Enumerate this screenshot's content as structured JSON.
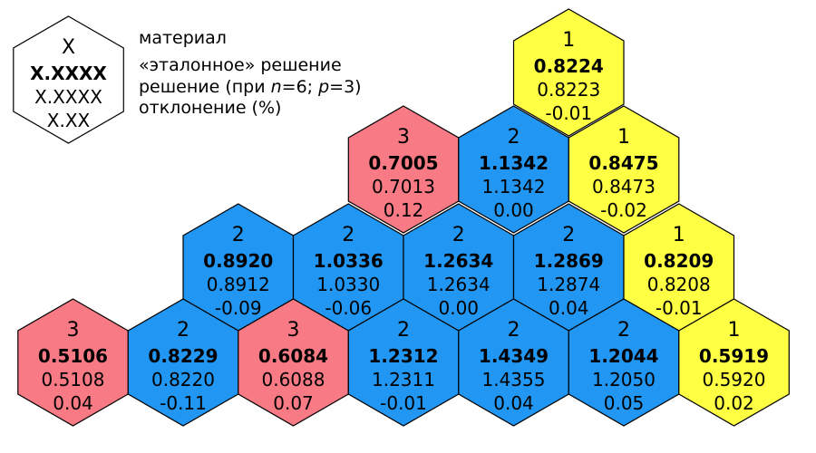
{
  "colors": {
    "red": "#F87A85",
    "blue": "#2196F3",
    "yellow": "#FFFF44",
    "legend": "#FFFFFF",
    "stroke": "#000000"
  },
  "legend": {
    "hex_lines": [
      "X",
      "X.XXXX",
      "X.XXXX",
      "X.XX"
    ],
    "labels": {
      "material": "материал",
      "reference": "«эталонное» решение",
      "solution_prefix": "решение (при ",
      "n_var": "n",
      "n_value": "=6; ",
      "p_var": "p",
      "p_value": "=3)",
      "deviation": "отклонение (%)"
    }
  },
  "cells": [
    {
      "id": "r0-c0",
      "color": "yellow",
      "material": "1",
      "reference": "0.8224",
      "solution": "0.8223",
      "deviation": "-0.01"
    },
    {
      "id": "r1-c0",
      "color": "red",
      "material": "3",
      "reference": "0.7005",
      "solution": "0.7013",
      "deviation": "0.12"
    },
    {
      "id": "r1-c1",
      "color": "blue",
      "material": "2",
      "reference": "1.1342",
      "solution": "1.1342",
      "deviation": "0.00"
    },
    {
      "id": "r1-c2",
      "color": "yellow",
      "material": "1",
      "reference": "0.8475",
      "solution": "0.8473",
      "deviation": "-0.02"
    },
    {
      "id": "r2-c0",
      "color": "blue",
      "material": "2",
      "reference": "0.8920",
      "solution": "0.8912",
      "deviation": "-0.09"
    },
    {
      "id": "r2-c1",
      "color": "blue",
      "material": "2",
      "reference": "1.0336",
      "solution": "1.0330",
      "deviation": "-0.06"
    },
    {
      "id": "r2-c2",
      "color": "blue",
      "material": "2",
      "reference": "1.2634",
      "solution": "1.2634",
      "deviation": "0.00"
    },
    {
      "id": "r2-c3",
      "color": "blue",
      "material": "2",
      "reference": "1.2869",
      "solution": "1.2874",
      "deviation": "0.04"
    },
    {
      "id": "r2-c4",
      "color": "yellow",
      "material": "1",
      "reference": "0.8209",
      "solution": "0.8208",
      "deviation": "-0.01"
    },
    {
      "id": "r3-c0",
      "color": "red",
      "material": "3",
      "reference": "0.5106",
      "solution": "0.5108",
      "deviation": "0.04"
    },
    {
      "id": "r3-c1",
      "color": "blue",
      "material": "2",
      "reference": "0.8229",
      "solution": "0.8220",
      "deviation": "-0.11"
    },
    {
      "id": "r3-c2",
      "color": "red",
      "material": "3",
      "reference": "0.6084",
      "solution": "0.6088",
      "deviation": "0.07"
    },
    {
      "id": "r3-c3",
      "color": "blue",
      "material": "2",
      "reference": "1.2312",
      "solution": "1.2311",
      "deviation": "-0.01"
    },
    {
      "id": "r3-c4",
      "color": "blue",
      "material": "2",
      "reference": "1.4349",
      "solution": "1.4355",
      "deviation": "0.04"
    },
    {
      "id": "r3-c5",
      "color": "blue",
      "material": "2",
      "reference": "1.2044",
      "solution": "1.2050",
      "deviation": "0.05"
    },
    {
      "id": "r3-c6",
      "color": "yellow",
      "material": "1",
      "reference": "0.5919",
      "solution": "0.5920",
      "deviation": "0.02"
    }
  ]
}
